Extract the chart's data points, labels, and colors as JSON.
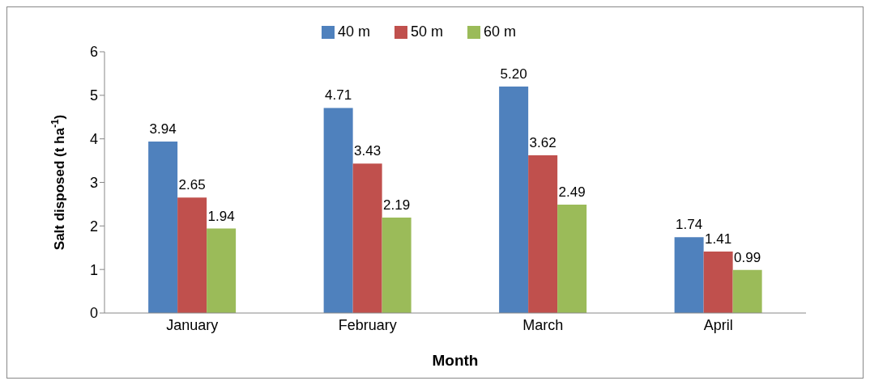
{
  "chart_data": {
    "type": "bar",
    "xlabel": "Month",
    "ylabel": "Salt disposed (t ha$^{-1}$)",
    "categories": [
      "January",
      "February",
      "March",
      "April"
    ],
    "series": [
      {
        "name": "40 m",
        "color": "#4f81bd",
        "values": [
          3.94,
          4.71,
          5.2,
          1.74
        ],
        "value_labels": [
          "3.94",
          "4.71",
          "5.20",
          "1.74"
        ]
      },
      {
        "name": "50 m",
        "color": "#c0504d",
        "values": [
          2.65,
          3.43,
          3.62,
          1.41
        ],
        "value_labels": [
          "2.65",
          "3.43",
          "3.62",
          "1.41"
        ]
      },
      {
        "name": "60 m",
        "color": "#9bbb59",
        "values": [
          1.94,
          2.19,
          2.49,
          0.99
        ],
        "value_labels": [
          "1.94",
          "2.19",
          "2.49",
          "0.99"
        ]
      }
    ],
    "ylim": [
      0,
      6
    ],
    "yticks": [
      0,
      1,
      2,
      3,
      4,
      5,
      6
    ],
    "grid": false,
    "legend": "top"
  }
}
